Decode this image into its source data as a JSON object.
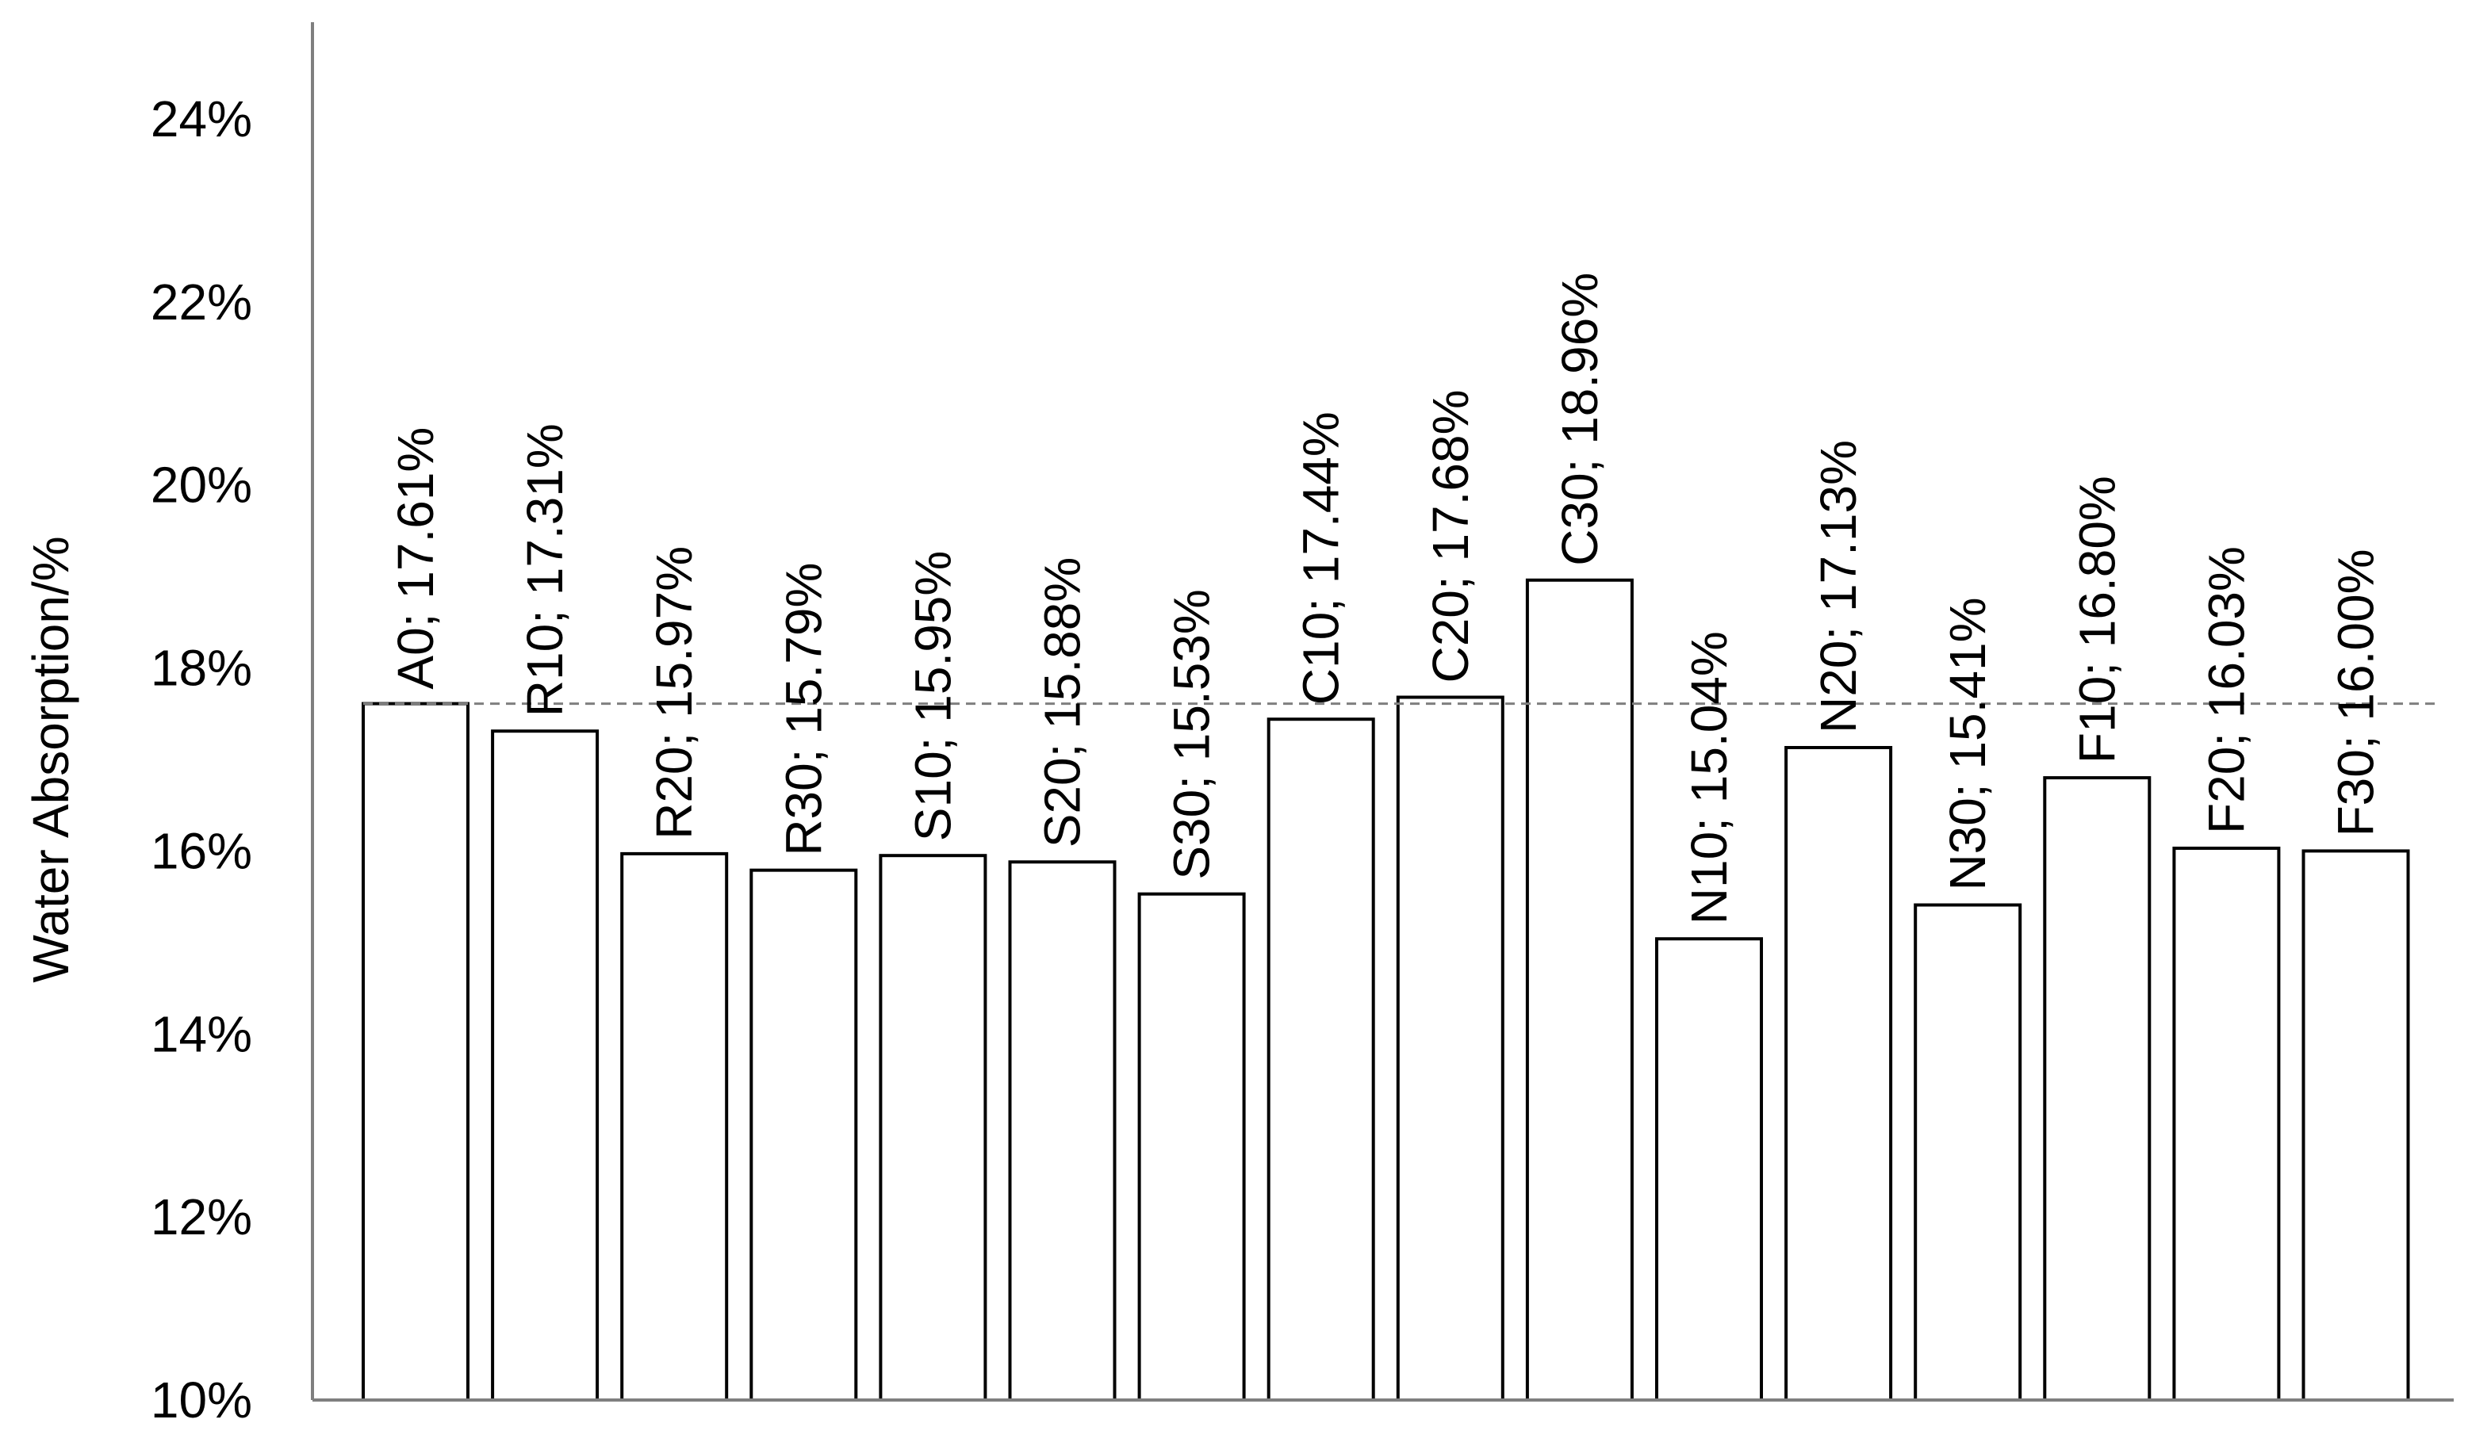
{
  "chart_data": {
    "type": "bar",
    "categories": [
      "A0",
      "R10",
      "R20",
      "R30",
      "S10",
      "S20",
      "S30",
      "C10",
      "C20",
      "C30",
      "N10",
      "N20",
      "N30",
      "F10",
      "F20",
      "F30"
    ],
    "values": [
      17.61,
      17.31,
      15.97,
      15.79,
      15.95,
      15.88,
      15.53,
      17.44,
      17.68,
      18.96,
      15.04,
      17.13,
      15.41,
      16.8,
      16.03,
      16.0
    ],
    "data_labels": [
      "A0; 17.61%",
      "R10; 17.31%",
      "R20; 15.97%",
      "R30; 15.79%",
      "S10; 15.95%",
      "S20; 15.88%",
      "S30; 15.53%",
      "C10; 17.44%",
      "C20; 17.68%",
      "C30; 18.96%",
      "N10; 15.04%",
      "N20; 17.13%",
      "N30; 15.41%",
      "F10; 16.80%",
      "F20; 16.03%",
      "F30; 16.00%"
    ],
    "title": "",
    "xlabel": "",
    "ylabel": "Water Absorption/%",
    "ylim": [
      10,
      24
    ],
    "yticks": [
      10,
      12,
      14,
      16,
      18,
      20,
      22,
      24
    ],
    "ytick_labels": [
      "10%",
      "12%",
      "14%",
      "16%",
      "18%",
      "20%",
      "22%",
      "24%"
    ],
    "reference_line": {
      "value": 17.61,
      "style": "dashed"
    },
    "grid": false,
    "legend": "none",
    "colors": {
      "bar_fill": "#ffffff",
      "bar_stroke": "#000000",
      "axis": "#7f7f7f",
      "reference_line": "#7f7f7f"
    }
  }
}
